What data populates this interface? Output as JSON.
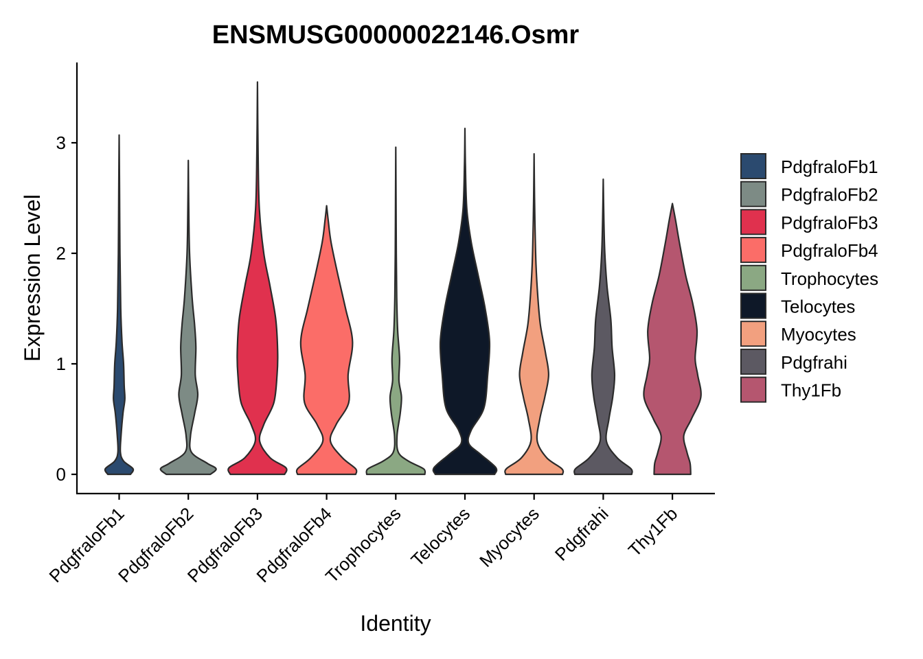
{
  "chart_data": {
    "type": "violin",
    "title": "ENSMUSG00000022146.Osmr",
    "xlabel": "Identity",
    "ylabel": "Expression Level",
    "ylim": [
      -0.18,
      3.72
    ],
    "yticks": [
      0,
      1,
      2,
      3
    ],
    "grid": false,
    "legend_position": "right",
    "categories": [
      "PdgfraloFb1",
      "PdgfraloFb2",
      "PdgfraloFb3",
      "PdgfraloFb4",
      "Trophocytes",
      "Telocytes",
      "Myocytes",
      "Pdgfrahi",
      "Thy1Fb"
    ],
    "colors": [
      "#2B4A6F",
      "#7D8B85",
      "#E0314E",
      "#FB6D68",
      "#8BA883",
      "#0E1828",
      "#F2A07F",
      "#5C5962",
      "#B5566F"
    ],
    "series": [
      {
        "name": "PdgfraloFb1",
        "max": 3.07,
        "profile": [
          [
            0,
            0.36
          ],
          [
            0.05,
            0.44
          ],
          [
            0.12,
            0.14
          ],
          [
            0.2,
            0.04
          ],
          [
            0.35,
            0.06
          ],
          [
            0.55,
            0.12
          ],
          [
            0.68,
            0.18
          ],
          [
            0.8,
            0.16
          ],
          [
            1.0,
            0.14
          ],
          [
            1.2,
            0.09
          ],
          [
            1.5,
            0.05
          ],
          [
            2.0,
            0.025
          ],
          [
            2.6,
            0.012
          ],
          [
            3.07,
            0
          ]
        ]
      },
      {
        "name": "PdgfraloFb2",
        "max": 2.84,
        "profile": [
          [
            0,
            0.7
          ],
          [
            0.05,
            0.88
          ],
          [
            0.1,
            0.6
          ],
          [
            0.2,
            0.1
          ],
          [
            0.35,
            0.07
          ],
          [
            0.55,
            0.2
          ],
          [
            0.72,
            0.3
          ],
          [
            0.9,
            0.22
          ],
          [
            1.15,
            0.24
          ],
          [
            1.35,
            0.2
          ],
          [
            1.6,
            0.12
          ],
          [
            2.0,
            0.04
          ],
          [
            2.4,
            0.015
          ],
          [
            2.84,
            0
          ]
        ]
      },
      {
        "name": "PdgfraloFb3",
        "max": 3.55,
        "profile": [
          [
            0,
            0.86
          ],
          [
            0.06,
            0.9
          ],
          [
            0.15,
            0.4
          ],
          [
            0.3,
            0.07
          ],
          [
            0.45,
            0.2
          ],
          [
            0.65,
            0.52
          ],
          [
            0.9,
            0.62
          ],
          [
            1.1,
            0.64
          ],
          [
            1.4,
            0.58
          ],
          [
            1.7,
            0.4
          ],
          [
            2.0,
            0.2
          ],
          [
            2.4,
            0.06
          ],
          [
            2.9,
            0.02
          ],
          [
            3.55,
            0
          ]
        ]
      },
      {
        "name": "PdgfraloFb4",
        "max": 2.43,
        "profile": [
          [
            0,
            0.92
          ],
          [
            0.05,
            0.92
          ],
          [
            0.15,
            0.5
          ],
          [
            0.3,
            0.12
          ],
          [
            0.45,
            0.3
          ],
          [
            0.65,
            0.7
          ],
          [
            0.9,
            0.68
          ],
          [
            1.2,
            0.82
          ],
          [
            1.5,
            0.6
          ],
          [
            1.8,
            0.36
          ],
          [
            2.1,
            0.14
          ],
          [
            2.3,
            0.05
          ],
          [
            2.43,
            0
          ]
        ]
      },
      {
        "name": "Trophocytes",
        "max": 2.96,
        "profile": [
          [
            0,
            0.92
          ],
          [
            0.05,
            0.88
          ],
          [
            0.12,
            0.4
          ],
          [
            0.2,
            0.08
          ],
          [
            0.35,
            0.04
          ],
          [
            0.55,
            0.14
          ],
          [
            0.7,
            0.18
          ],
          [
            0.85,
            0.1
          ],
          [
            1.05,
            0.12
          ],
          [
            1.3,
            0.06
          ],
          [
            1.6,
            0.03
          ],
          [
            2.0,
            0.016
          ],
          [
            2.5,
            0.008
          ],
          [
            2.96,
            0
          ]
        ]
      },
      {
        "name": "Telocytes",
        "max": 3.13,
        "profile": [
          [
            0,
            0.94
          ],
          [
            0.06,
            0.98
          ],
          [
            0.18,
            0.5
          ],
          [
            0.28,
            0.12
          ],
          [
            0.4,
            0.2
          ],
          [
            0.6,
            0.6
          ],
          [
            0.9,
            0.72
          ],
          [
            1.2,
            0.78
          ],
          [
            1.5,
            0.64
          ],
          [
            1.8,
            0.42
          ],
          [
            2.1,
            0.2
          ],
          [
            2.4,
            0.06
          ],
          [
            2.8,
            0.015
          ],
          [
            3.13,
            0
          ]
        ]
      },
      {
        "name": "Myocytes",
        "max": 2.9,
        "profile": [
          [
            0,
            0.9
          ],
          [
            0.05,
            0.88
          ],
          [
            0.15,
            0.4
          ],
          [
            0.3,
            0.1
          ],
          [
            0.5,
            0.18
          ],
          [
            0.7,
            0.34
          ],
          [
            0.9,
            0.46
          ],
          [
            1.1,
            0.36
          ],
          [
            1.35,
            0.2
          ],
          [
            1.6,
            0.12
          ],
          [
            1.9,
            0.06
          ],
          [
            2.3,
            0.025
          ],
          [
            2.6,
            0.01
          ],
          [
            2.9,
            0
          ]
        ]
      },
      {
        "name": "Pdgfrahi",
        "max": 2.67,
        "profile": [
          [
            0,
            0.9
          ],
          [
            0.05,
            0.88
          ],
          [
            0.15,
            0.44
          ],
          [
            0.3,
            0.1
          ],
          [
            0.5,
            0.18
          ],
          [
            0.7,
            0.3
          ],
          [
            0.9,
            0.36
          ],
          [
            1.15,
            0.28
          ],
          [
            1.4,
            0.24
          ],
          [
            1.7,
            0.12
          ],
          [
            2.0,
            0.05
          ],
          [
            2.3,
            0.02
          ],
          [
            2.67,
            0
          ]
        ]
      },
      {
        "name": "Thy1Fb",
        "max": 2.45,
        "profile": [
          [
            0,
            0.58
          ],
          [
            0.1,
            0.56
          ],
          [
            0.2,
            0.46
          ],
          [
            0.35,
            0.36
          ],
          [
            0.5,
            0.6
          ],
          [
            0.7,
            0.9
          ],
          [
            0.9,
            0.8
          ],
          [
            1.05,
            0.72
          ],
          [
            1.3,
            0.78
          ],
          [
            1.55,
            0.64
          ],
          [
            1.8,
            0.42
          ],
          [
            2.1,
            0.22
          ],
          [
            2.3,
            0.1
          ],
          [
            2.45,
            0
          ]
        ]
      }
    ]
  }
}
